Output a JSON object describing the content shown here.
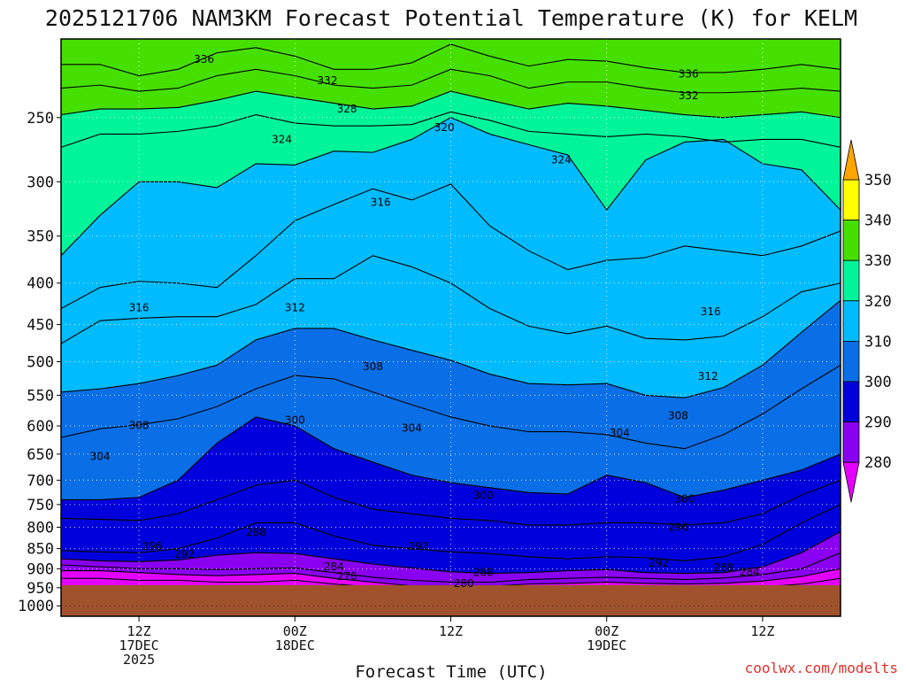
{
  "title": "2025121706 NAM3KM Forecast Potential Temperature (K) for KELM",
  "xlabel": "Forecast Time (UTC)",
  "credit": "coolwx.com/modelts",
  "chart_data": {
    "type": "heatmap",
    "title": "2025121706 NAM3KM Forecast Potential Temperature (K) for KELM",
    "xlabel": "Forecast Time (UTC)",
    "ylabel": "",
    "y_ticks": [
      250,
      300,
      350,
      400,
      450,
      500,
      550,
      600,
      650,
      700,
      750,
      800,
      850,
      900,
      950,
      1000
    ],
    "y_range_hpa": [
      200,
      1030
    ],
    "x_range_hours": [
      0,
      60
    ],
    "x_ticks": [
      {
        "hour": 6,
        "line1": "12Z",
        "line2": "17DEC",
        "line3": "2025"
      },
      {
        "hour": 18,
        "line1": "00Z",
        "line2": "18DEC",
        "line3": ""
      },
      {
        "hour": 30,
        "line1": "12Z",
        "line2": "",
        "line3": ""
      },
      {
        "hour": 42,
        "line1": "00Z",
        "line2": "19DEC",
        "line3": ""
      },
      {
        "hour": 54,
        "line1": "12Z",
        "line2": "",
        "line3": ""
      }
    ],
    "colorbar": {
      "levels": [
        280,
        290,
        300,
        310,
        320,
        330,
        340,
        350
      ],
      "colors": [
        "#e400ff",
        "#8a00f0",
        "#0000dc",
        "#0a6fe6",
        "#00bcff",
        "#00f59a",
        "#46e000",
        "#ffff00",
        "#ffa500"
      ],
      "under_color": "#e400ff",
      "over_color": "#ffa500"
    },
    "ground_color": "#a0522d",
    "grid": true,
    "isentropes": [
      {
        "theta": 336,
        "pressure": [
          215,
          215,
          222,
          218,
          208,
          205,
          210,
          218,
          218,
          214,
          203,
          210,
          216,
          212,
          213,
          217,
          220,
          220,
          218,
          215,
          218
        ]
      },
      {
        "theta": 332,
        "pressure": [
          230,
          228,
          232,
          230,
          222,
          218,
          222,
          228,
          230,
          228,
          218,
          222,
          230,
          226,
          226,
          230,
          233,
          233,
          232,
          230,
          232
        ]
      },
      {
        "theta": 328,
        "pressure": [
          248,
          244,
          244,
          243,
          238,
          232,
          236,
          240,
          244,
          242,
          232,
          238,
          244,
          240,
          242,
          245,
          248,
          250,
          248,
          246,
          250
        ]
      },
      {
        "theta": 324,
        "pressure": [
          272,
          262,
          262,
          260,
          256,
          248,
          254,
          256,
          256,
          255,
          246,
          252,
          260,
          262,
          264,
          262,
          264,
          268,
          266,
          266,
          272
        ]
      },
      {
        "theta": 320,
        "pressure": [
          370,
          330,
          300,
          300,
          305,
          285,
          286,
          275,
          276,
          266,
          250,
          262,
          270,
          278,
          325,
          282,
          268,
          266,
          285,
          290,
          325
        ]
      },
      {
        "theta": 316,
        "pressure": [
          430,
          405,
          398,
          400,
          405,
          370,
          335,
          320,
          306,
          316,
          302,
          340,
          365,
          385,
          375,
          372,
          360,
          365,
          370,
          360,
          345
        ]
      },
      {
        "theta": 312,
        "pressure": [
          475,
          445,
          442,
          440,
          440,
          425,
          395,
          395,
          370,
          382,
          400,
          430,
          452,
          462,
          452,
          468,
          470,
          465,
          440,
          410,
          400
        ]
      },
      {
        "theta": 308,
        "pressure": [
          545,
          540,
          532,
          520,
          505,
          470,
          455,
          455,
          470,
          484,
          498,
          518,
          532,
          534,
          532,
          550,
          554,
          538,
          505,
          460,
          420
        ]
      },
      {
        "theta": 304,
        "pressure": [
          620,
          605,
          598,
          588,
          568,
          540,
          520,
          525,
          545,
          565,
          585,
          600,
          610,
          610,
          615,
          630,
          640,
          615,
          580,
          540,
          505
        ]
      },
      {
        "theta": 300,
        "pressure": [
          740,
          740,
          735,
          700,
          630,
          585,
          600,
          640,
          665,
          690,
          705,
          715,
          725,
          728,
          690,
          705,
          735,
          720,
          700,
          680,
          650
        ]
      },
      {
        "theta": 296,
        "pressure": [
          780,
          782,
          785,
          770,
          740,
          710,
          700,
          735,
          760,
          770,
          780,
          785,
          795,
          795,
          790,
          790,
          795,
          790,
          770,
          730,
          700
        ]
      },
      {
        "theta": 292,
        "pressure": [
          855,
          858,
          860,
          850,
          825,
          790,
          790,
          820,
          842,
          850,
          858,
          862,
          870,
          875,
          870,
          872,
          880,
          870,
          840,
          790,
          750
        ]
      },
      {
        "theta": 288,
        "pressure": [
          875,
          880,
          882,
          878,
          866,
          860,
          862,
          875,
          888,
          898,
          908,
          912,
          910,
          905,
          902,
          910,
          912,
          910,
          895,
          860,
          810
        ]
      },
      {
        "theta": 284,
        "pressure": [
          890,
          895,
          900,
          900,
          902,
          900,
          898,
          910,
          922,
          930,
          935,
          935,
          928,
          925,
          922,
          925,
          928,
          924,
          915,
          900,
          860
        ]
      },
      {
        "theta": 280,
        "pressure": [
          905,
          905,
          910,
          915,
          918,
          915,
          912,
          925,
          935,
          945,
          948,
          946,
          940,
          938,
          935,
          938,
          940,
          938,
          932,
          920,
          900
        ]
      },
      {
        "theta": 276,
        "pressure": [
          925,
          925,
          930,
          930,
          935,
          935,
          930,
          940,
          948,
          955,
          958,
          958,
          952,
          950,
          950,
          952,
          952,
          950,
          948,
          940,
          925
        ]
      }
    ],
    "contour_labels": [
      {
        "text": "336",
        "hour": 11.0,
        "hpa": 212
      },
      {
        "text": "332",
        "hour": 20.5,
        "hpa": 225
      },
      {
        "text": "328",
        "hour": 22.0,
        "hpa": 244
      },
      {
        "text": "324",
        "hour": 17.0,
        "hpa": 266
      },
      {
        "text": "320",
        "hour": 29.5,
        "hpa": 257
      },
      {
        "text": "324",
        "hour": 38.5,
        "hpa": 282
      },
      {
        "text": "336",
        "hour": 48.3,
        "hpa": 221
      },
      {
        "text": "332",
        "hour": 48.3,
        "hpa": 235
      },
      {
        "text": "316",
        "hour": 24.6,
        "hpa": 318
      },
      {
        "text": "316",
        "hour": 6.0,
        "hpa": 429
      },
      {
        "text": "312",
        "hour": 18.0,
        "hpa": 429
      },
      {
        "text": "316",
        "hour": 50.0,
        "hpa": 434
      },
      {
        "text": "308",
        "hour": 24.0,
        "hpa": 507
      },
      {
        "text": "312",
        "hour": 49.8,
        "hpa": 521
      },
      {
        "text": "308",
        "hour": 6.0,
        "hpa": 599
      },
      {
        "text": "300",
        "hour": 18.0,
        "hpa": 590
      },
      {
        "text": "304",
        "hour": 27.0,
        "hpa": 604
      },
      {
        "text": "308",
        "hour": 47.5,
        "hpa": 583
      },
      {
        "text": "304",
        "hour": 3.0,
        "hpa": 654
      },
      {
        "text": "304",
        "hour": 43.0,
        "hpa": 612
      },
      {
        "text": "300",
        "hour": 32.5,
        "hpa": 731
      },
      {
        "text": "300",
        "hour": 48.0,
        "hpa": 738
      },
      {
        "text": "296",
        "hour": 47.5,
        "hpa": 800
      },
      {
        "text": "296",
        "hour": 7.0,
        "hpa": 844
      },
      {
        "text": "292",
        "hour": 9.5,
        "hpa": 864
      },
      {
        "text": "288",
        "hour": 15.0,
        "hpa": 811
      },
      {
        "text": "292",
        "hour": 27.5,
        "hpa": 844
      },
      {
        "text": "292",
        "hour": 46.0,
        "hpa": 886
      },
      {
        "text": "288",
        "hour": 51.0,
        "hpa": 897
      },
      {
        "text": "284",
        "hour": 53.0,
        "hpa": 908
      },
      {
        "text": "284",
        "hour": 21.0,
        "hpa": 895
      },
      {
        "text": "276",
        "hour": 22.0,
        "hpa": 920
      },
      {
        "text": "288",
        "hour": 32.5,
        "hpa": 910
      },
      {
        "text": "280",
        "hour": 31.0,
        "hpa": 939
      }
    ]
  }
}
